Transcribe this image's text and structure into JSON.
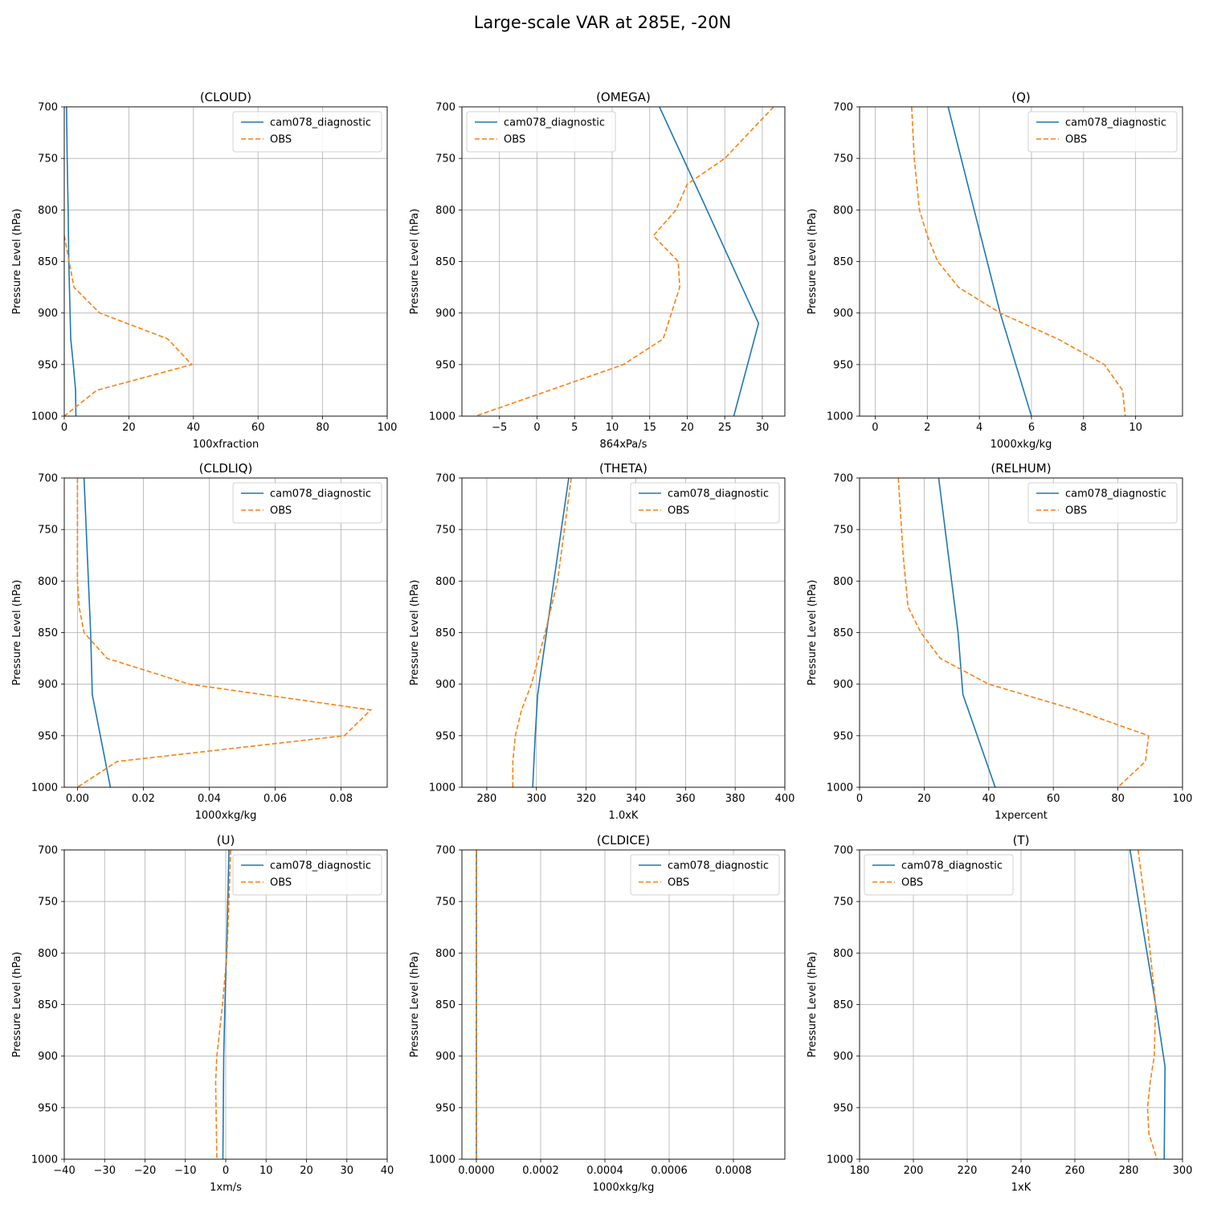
{
  "figure": {
    "title": "Large-scale VAR at 285E, -20N"
  },
  "chart_data": [
    {
      "type": "line",
      "title": "(CLOUD)",
      "xlabel": "100xfraction",
      "ylabel": "Pressure Level (hPa)",
      "xlim": [
        0,
        100
      ],
      "xticks": [
        0,
        20,
        40,
        60,
        80,
        100
      ],
      "xtick_labels": [
        "0",
        "20",
        "40",
        "60",
        "80",
        "100"
      ],
      "ylim": [
        1000,
        700
      ],
      "yticks": [
        700,
        750,
        800,
        850,
        900,
        950,
        1000
      ],
      "ytick_labels": [
        "700",
        "750",
        "800",
        "850",
        "900",
        "950",
        "1000"
      ],
      "grid": true,
      "legend_loc": "upper right",
      "series": [
        {
          "name": "cam078_diagnostic",
          "color": "#1f77b4",
          "dash": false,
          "x": [
            0.7,
            0.9,
            1.2,
            1.4,
            1.6,
            1.8,
            2.0,
            2.8,
            3.5,
            3.6
          ],
          "y": [
            700,
            750,
            800,
            850,
            875,
            900,
            925,
            950,
            975,
            1000
          ]
        },
        {
          "name": "OBS",
          "color": "#ff7f0e",
          "dash": true,
          "x": [
            0.0,
            1.5,
            3.0,
            11.0,
            32.0,
            39.5,
            10.0,
            0.0
          ],
          "y": [
            825,
            850,
            875,
            900,
            925,
            950,
            975,
            1000
          ]
        }
      ]
    },
    {
      "type": "line",
      "title": "(OMEGA)",
      "xlabel": "864xPa/s",
      "ylabel": "Pressure Level (hPa)",
      "xlim": [
        -10,
        33
      ],
      "xticks": [
        -5,
        0,
        5,
        10,
        15,
        20,
        25,
        30
      ],
      "xtick_labels": [
        "−5",
        "0",
        "5",
        "10",
        "15",
        "20",
        "25",
        "30"
      ],
      "ylim": [
        1000,
        700
      ],
      "yticks": [
        700,
        750,
        800,
        850,
        900,
        950,
        1000
      ],
      "ytick_labels": [
        "700",
        "750",
        "800",
        "850",
        "900",
        "950",
        "1000"
      ],
      "grid": true,
      "legend_loc": "upper left",
      "series": [
        {
          "name": "cam078_diagnostic",
          "color": "#1f77b4",
          "dash": false,
          "x": [
            16.3,
            22.0,
            29.5,
            26.2
          ],
          "y": [
            700,
            790,
            910,
            1000
          ]
        },
        {
          "name": "OBS",
          "color": "#ff7f0e",
          "dash": true,
          "x": [
            31.5,
            25.0,
            20.0,
            18.5,
            15.5,
            18.8,
            19.0,
            16.8,
            11.5,
            -8.2
          ],
          "y": [
            700,
            750,
            775,
            800,
            825,
            850,
            875,
            925,
            950,
            1000
          ]
        }
      ]
    },
    {
      "type": "line",
      "title": "(Q)",
      "xlabel": "1000xkg/kg",
      "ylabel": "Pressure Level (hPa)",
      "xlim": [
        -0.6,
        11.8
      ],
      "xticks": [
        0,
        2,
        4,
        6,
        8,
        10
      ],
      "xtick_labels": [
        "0",
        "2",
        "4",
        "6",
        "8",
        "10"
      ],
      "ylim": [
        1000,
        700
      ],
      "yticks": [
        700,
        750,
        800,
        850,
        900,
        950,
        1000
      ],
      "ytick_labels": [
        "700",
        "750",
        "800",
        "850",
        "900",
        "950",
        "1000"
      ],
      "grid": true,
      "legend_loc": "upper right",
      "series": [
        {
          "name": "cam078_diagnostic",
          "color": "#1f77b4",
          "dash": false,
          "x": [
            2.8,
            4.8,
            6.0
          ],
          "y": [
            700,
            900,
            1000
          ]
        },
        {
          "name": "OBS",
          "color": "#ff7f0e",
          "dash": true,
          "x": [
            1.4,
            1.5,
            1.7,
            2.0,
            2.4,
            3.2,
            4.8,
            7.0,
            8.8,
            9.5,
            9.6
          ],
          "y": [
            700,
            750,
            800,
            825,
            850,
            875,
            900,
            925,
            950,
            975,
            1000
          ]
        }
      ]
    },
    {
      "type": "line",
      "title": "(CLDLIQ)",
      "xlabel": "1000xkg/kg",
      "ylabel": "Pressure Level (hPa)",
      "xlim": [
        -0.004,
        0.094
      ],
      "xticks": [
        0.0,
        0.02,
        0.04,
        0.06,
        0.08
      ],
      "xtick_labels": [
        "0.00",
        "0.02",
        "0.04",
        "0.06",
        "0.08"
      ],
      "ylim": [
        1000,
        700
      ],
      "yticks": [
        700,
        750,
        800,
        850,
        900,
        950,
        1000
      ],
      "ytick_labels": [
        "700",
        "750",
        "800",
        "850",
        "900",
        "950",
        "1000"
      ],
      "grid": true,
      "legend_loc": "upper right",
      "series": [
        {
          "name": "cam078_diagnostic",
          "color": "#1f77b4",
          "dash": false,
          "x": [
            0.002,
            0.004,
            0.0045,
            0.01
          ],
          "y": [
            700,
            850,
            910,
            1000
          ]
        },
        {
          "name": "OBS",
          "color": "#ff7f0e",
          "dash": true,
          "x": [
            0.0,
            0.0,
            0.0005,
            0.002,
            0.009,
            0.034,
            0.089,
            0.081,
            0.012,
            0.0
          ],
          "y": [
            700,
            800,
            825,
            850,
            875,
            900,
            925,
            950,
            975,
            1000
          ]
        }
      ]
    },
    {
      "type": "line",
      "title": "(THETA)",
      "xlabel": "1.0xK",
      "ylabel": "Pressure Level (hPa)",
      "xlim": [
        270,
        400
      ],
      "xticks": [
        280,
        300,
        320,
        340,
        360,
        380,
        400
      ],
      "xtick_labels": [
        "280",
        "300",
        "320",
        "340",
        "360",
        "380",
        "400"
      ],
      "ylim": [
        1000,
        700
      ],
      "yticks": [
        700,
        750,
        800,
        850,
        900,
        950,
        1000
      ],
      "ytick_labels": [
        "700",
        "750",
        "800",
        "850",
        "900",
        "950",
        "1000"
      ],
      "grid": true,
      "legend_loc": "upper right",
      "series": [
        {
          "name": "cam078_diagnostic",
          "color": "#1f77b4",
          "dash": false,
          "x": [
            313.0,
            307.0,
            300.5,
            299.5,
            298.5
          ],
          "y": [
            700,
            800,
            910,
            950,
            1000
          ]
        },
        {
          "name": "OBS",
          "color": "#ff7f0e",
          "dash": true,
          "x": [
            314.0,
            308.5,
            303.5,
            298.0,
            294.0,
            291.5,
            290.5,
            290.5
          ],
          "y": [
            700,
            800,
            850,
            900,
            925,
            950,
            975,
            1000
          ]
        }
      ]
    },
    {
      "type": "line",
      "title": "(RELHUM)",
      "xlabel": "1xpercent",
      "ylabel": "Pressure Level (hPa)",
      "xlim": [
        0,
        100
      ],
      "xticks": [
        0,
        20,
        40,
        60,
        80,
        100
      ],
      "xtick_labels": [
        "0",
        "20",
        "40",
        "60",
        "80",
        "100"
      ],
      "ylim": [
        1000,
        700
      ],
      "yticks": [
        700,
        750,
        800,
        850,
        900,
        950,
        1000
      ],
      "ytick_labels": [
        "700",
        "750",
        "800",
        "850",
        "900",
        "950",
        "1000"
      ],
      "grid": true,
      "legend_loc": "upper right",
      "series": [
        {
          "name": "cam078_diagnostic",
          "color": "#1f77b4",
          "dash": false,
          "x": [
            24.5,
            30.5,
            32.0,
            42.0
          ],
          "y": [
            700,
            850,
            910,
            1000
          ]
        },
        {
          "name": "OBS",
          "color": "#ff7f0e",
          "dash": true,
          "x": [
            12.0,
            13.5,
            15.0,
            19.0,
            25.0,
            40.0,
            67.0,
            89.5,
            88.5,
            80.0
          ],
          "y": [
            700,
            775,
            825,
            850,
            875,
            900,
            925,
            950,
            975,
            1000
          ]
        }
      ]
    },
    {
      "type": "line",
      "title": "(U)",
      "xlabel": "1xm/s",
      "ylabel": "Pressure Level (hPa)",
      "xlim": [
        -40,
        40
      ],
      "xticks": [
        -40,
        -30,
        -20,
        -10,
        0,
        10,
        20,
        30,
        40
      ],
      "xtick_labels": [
        "−40",
        "−30",
        "−20",
        "−10",
        "0",
        "10",
        "20",
        "30",
        "40"
      ],
      "ylim": [
        1000,
        700
      ],
      "yticks": [
        700,
        750,
        800,
        850,
        900,
        950,
        1000
      ],
      "ytick_labels": [
        "700",
        "750",
        "800",
        "850",
        "900",
        "950",
        "1000"
      ],
      "grid": true,
      "legend_loc": "upper right",
      "series": [
        {
          "name": "cam078_diagnostic",
          "color": "#1f77b4",
          "dash": false,
          "x": [
            0.8,
            0.5,
            0.2,
            -0.2,
            -0.5,
            -0.7
          ],
          "y": [
            700,
            750,
            800,
            850,
            900,
            1000
          ]
        },
        {
          "name": "OBS",
          "color": "#ff7f0e",
          "dash": true,
          "x": [
            1.2,
            0.8,
            0.3,
            -0.8,
            -2.2,
            -2.5,
            -2.4,
            -2.2
          ],
          "y": [
            700,
            750,
            800,
            850,
            900,
            925,
            950,
            1000
          ]
        }
      ]
    },
    {
      "type": "line",
      "title": "(CLDICE)",
      "xlabel": "1000xkg/kg",
      "ylabel": "Pressure Level (hPa)",
      "xlim": [
        -4.5e-05,
        0.00096
      ],
      "xticks": [
        0.0,
        0.0002,
        0.0004,
        0.0006,
        0.0008
      ],
      "xtick_labels": [
        "0.0000",
        "0.0002",
        "0.0004",
        "0.0006",
        "0.0008"
      ],
      "ylim": [
        1000,
        700
      ],
      "yticks": [
        700,
        750,
        800,
        850,
        900,
        950,
        1000
      ],
      "ytick_labels": [
        "700",
        "750",
        "800",
        "850",
        "900",
        "950",
        "1000"
      ],
      "grid": true,
      "legend_loc": "upper right",
      "series": [
        {
          "name": "cam078_diagnostic",
          "color": "#1f77b4",
          "dash": false,
          "x": [
            0.0,
            0.0
          ],
          "y": [
            700,
            1000
          ]
        },
        {
          "name": "OBS",
          "color": "#ff7f0e",
          "dash": true,
          "x": [
            0.0,
            0.0
          ],
          "y": [
            700,
            1000
          ]
        }
      ]
    },
    {
      "type": "line",
      "title": "(T)",
      "xlabel": "1xK",
      "ylabel": "Pressure Level (hPa)",
      "xlim": [
        180,
        300
      ],
      "xticks": [
        180,
        200,
        220,
        240,
        260,
        280,
        300
      ],
      "xtick_labels": [
        "180",
        "200",
        "220",
        "240",
        "260",
        "280",
        "300"
      ],
      "ylim": [
        1000,
        700
      ],
      "yticks": [
        700,
        750,
        800,
        850,
        900,
        950,
        1000
      ],
      "ytick_labels": [
        "700",
        "750",
        "800",
        "850",
        "900",
        "950",
        "1000"
      ],
      "grid": true,
      "legend_loc": "upper left",
      "series": [
        {
          "name": "cam078_diagnostic",
          "color": "#1f77b4",
          "dash": false,
          "x": [
            280.5,
            290.0,
            293.5,
            293.2
          ],
          "y": [
            700,
            850,
            910,
            1000
          ]
        },
        {
          "name": "OBS",
          "color": "#ff7f0e",
          "dash": true,
          "x": [
            283.5,
            286.0,
            288.0,
            290.0,
            289.5,
            288.0,
            287.0,
            287.5,
            290.5
          ],
          "y": [
            700,
            750,
            800,
            850,
            900,
            925,
            950,
            975,
            1000
          ]
        }
      ]
    }
  ]
}
